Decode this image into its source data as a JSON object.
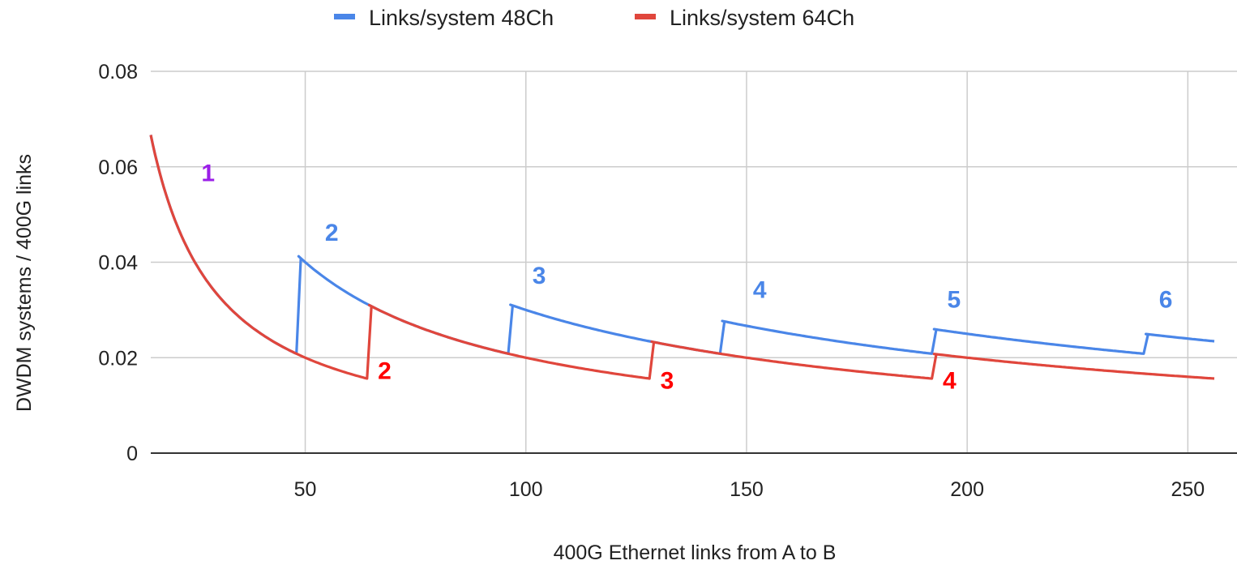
{
  "chart_data": {
    "type": "line",
    "title": "",
    "xlabel": "400G Ethernet links from A to B",
    "ylabel": "DWDM systems / 400G links",
    "xlim": [
      15,
      256
    ],
    "ylim": [
      0,
      0.08
    ],
    "x_ticks": [
      50,
      100,
      150,
      200,
      250
    ],
    "y_ticks": [
      0,
      0.02,
      0.04,
      0.06,
      0.08
    ],
    "x_tick_labels": [
      "50",
      "100",
      "150",
      "200",
      "250"
    ],
    "y_tick_labels": [
      "0",
      "0.02",
      "0.04",
      "0.06",
      "0.08"
    ],
    "grid": true,
    "legend_position": "top",
    "series": [
      {
        "name": "Links/system 48Ch",
        "color": "#4a86e8",
        "channels_per_system": 48,
        "points": [
          {
            "x": 15,
            "y": 0.0667
          },
          {
            "x": 20,
            "y": 0.05
          },
          {
            "x": 25,
            "y": 0.04
          },
          {
            "x": 30,
            "y": 0.0333
          },
          {
            "x": 35,
            "y": 0.0286
          },
          {
            "x": 40,
            "y": 0.025
          },
          {
            "x": 48,
            "y": 0.0208
          },
          {
            "x": 49,
            "y": 0.0408
          },
          {
            "x": 55,
            "y": 0.0364
          },
          {
            "x": 65,
            "y": 0.0308
          },
          {
            "x": 80,
            "y": 0.025
          },
          {
            "x": 96,
            "y": 0.0208
          },
          {
            "x": 97,
            "y": 0.0309
          },
          {
            "x": 110,
            "y": 0.0273
          },
          {
            "x": 128,
            "y": 0.0234
          },
          {
            "x": 144,
            "y": 0.0208
          },
          {
            "x": 145,
            "y": 0.0276
          },
          {
            "x": 165,
            "y": 0.0242
          },
          {
            "x": 192,
            "y": 0.0208
          },
          {
            "x": 193,
            "y": 0.0259
          },
          {
            "x": 215,
            "y": 0.0233
          },
          {
            "x": 240,
            "y": 0.0208
          },
          {
            "x": 241,
            "y": 0.0249
          },
          {
            "x": 256,
            "y": 0.0234
          }
        ]
      },
      {
        "name": "Links/system 64Ch",
        "color": "#e0463c",
        "channels_per_system": 64,
        "points": [
          {
            "x": 15,
            "y": 0.0667
          },
          {
            "x": 20,
            "y": 0.05
          },
          {
            "x": 25,
            "y": 0.04
          },
          {
            "x": 30,
            "y": 0.0333
          },
          {
            "x": 40,
            "y": 0.025
          },
          {
            "x": 50,
            "y": 0.02
          },
          {
            "x": 64,
            "y": 0.0156
          },
          {
            "x": 65,
            "y": 0.0308
          },
          {
            "x": 80,
            "y": 0.025
          },
          {
            "x": 100,
            "y": 0.02
          },
          {
            "x": 128,
            "y": 0.0156
          },
          {
            "x": 129,
            "y": 0.0233
          },
          {
            "x": 160,
            "y": 0.0188
          },
          {
            "x": 192,
            "y": 0.0156
          },
          {
            "x": 193,
            "y": 0.0207
          },
          {
            "x": 225,
            "y": 0.0178
          },
          {
            "x": 256,
            "y": 0.0156
          }
        ]
      }
    ],
    "annotations": [
      {
        "text": "1",
        "x": 28,
        "y": 0.057,
        "color": "#9b1fe8"
      },
      {
        "text": "2",
        "x": 56,
        "y": 0.0445,
        "color": "#4a86e8"
      },
      {
        "text": "3",
        "x": 103,
        "y": 0.0355,
        "color": "#4a86e8"
      },
      {
        "text": "4",
        "x": 153,
        "y": 0.0325,
        "color": "#4a86e8"
      },
      {
        "text": "5",
        "x": 197,
        "y": 0.0305,
        "color": "#4a86e8"
      },
      {
        "text": "6",
        "x": 245,
        "y": 0.0305,
        "color": "#4a86e8"
      },
      {
        "text": "2",
        "x": 68,
        "y": 0.0155,
        "color": "#ff0000"
      },
      {
        "text": "3",
        "x": 132,
        "y": 0.0135,
        "color": "#ff0000"
      },
      {
        "text": "4",
        "x": 196,
        "y": 0.0135,
        "color": "#ff0000"
      }
    ]
  }
}
